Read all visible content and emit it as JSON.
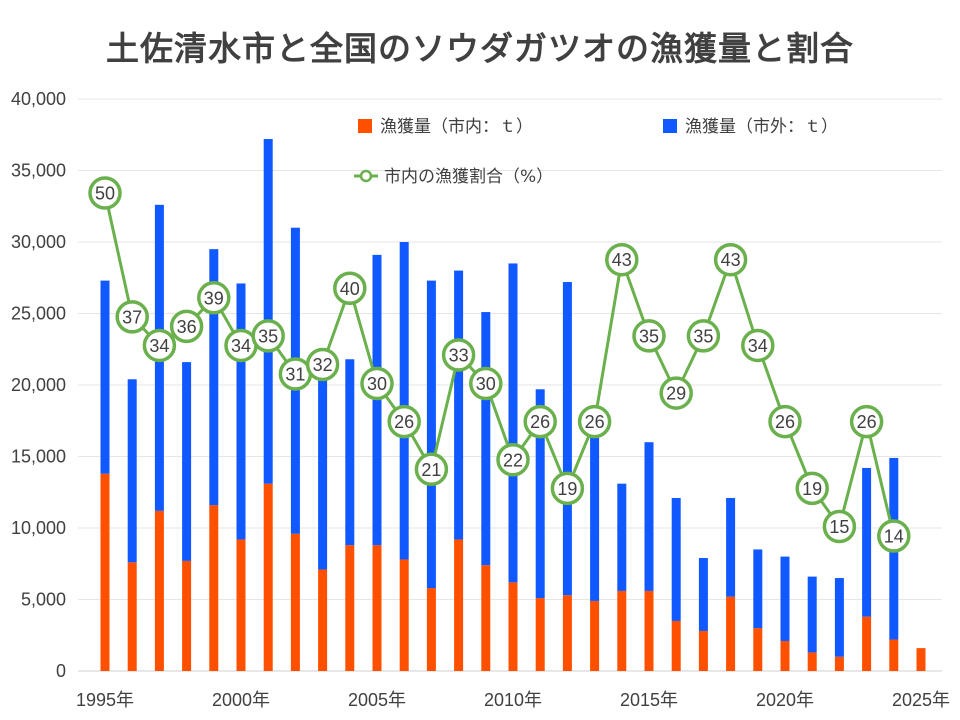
{
  "chart_data": {
    "type": "bar",
    "title": "土佐清水市と全国のソウダガツオの漁獲量と割合",
    "stacked": true,
    "x": [
      1995,
      1996,
      1997,
      1998,
      1999,
      2000,
      2001,
      2002,
      2003,
      2004,
      2005,
      2006,
      2007,
      2008,
      2009,
      2010,
      2011,
      2012,
      2013,
      2014,
      2015,
      2016,
      2017,
      2018,
      2019,
      2020,
      2021,
      2022,
      2023,
      2024,
      2025
    ],
    "x_tick_labels": [
      "1995年",
      "2000年",
      "2005年",
      "2010年",
      "2015年",
      "2020年",
      "2025年"
    ],
    "x_tick_values": [
      1995,
      2000,
      2005,
      2010,
      2015,
      2020,
      2025
    ],
    "ylim": [
      0,
      40000
    ],
    "y_ticks": [
      0,
      5000,
      10000,
      15000,
      20000,
      25000,
      30000,
      35000,
      40000
    ],
    "y_tick_labels": [
      "0",
      "5,000",
      "10,000",
      "15,000",
      "20,000",
      "25,000",
      "30,000",
      "35,000",
      "40,000"
    ],
    "grid": true,
    "legend_position": "top",
    "series": [
      {
        "name": "漁獲量（市内：ｔ）",
        "kind": "bar",
        "color": "#ff5000",
        "values": [
          13800,
          7600,
          11200,
          7700,
          11600,
          9200,
          13100,
          9600,
          7100,
          8800,
          8800,
          7800,
          5800,
          9200,
          7400,
          6200,
          5100,
          5300,
          4900,
          5600,
          5600,
          3500,
          2800,
          5200,
          3000,
          2100,
          1300,
          1000,
          3800,
          2200,
          1600
        ]
      },
      {
        "name": "漁獲量（市外：ｔ）",
        "kind": "bar",
        "color": "#1058ff",
        "values": [
          13500,
          12800,
          21400,
          13900,
          17900,
          17900,
          24100,
          21400,
          15200,
          13000,
          20300,
          22200,
          21500,
          18800,
          17700,
          22300,
          14600,
          21900,
          12100,
          7500,
          10400,
          8600,
          5100,
          6900,
          5500,
          5900,
          5300,
          5500,
          10400,
          12700,
          null
        ]
      },
      {
        "name": "市内の漁獲割合（%）",
        "kind": "line",
        "color": "#6ab04c",
        "values": [
          50,
          37,
          34,
          36,
          39,
          34,
          35,
          31,
          32,
          40,
          30,
          26,
          21,
          33,
          30,
          22,
          26,
          19,
          26,
          43,
          35,
          29,
          35,
          43,
          34,
          26,
          19,
          15,
          26,
          14,
          null
        ]
      }
    ]
  }
}
